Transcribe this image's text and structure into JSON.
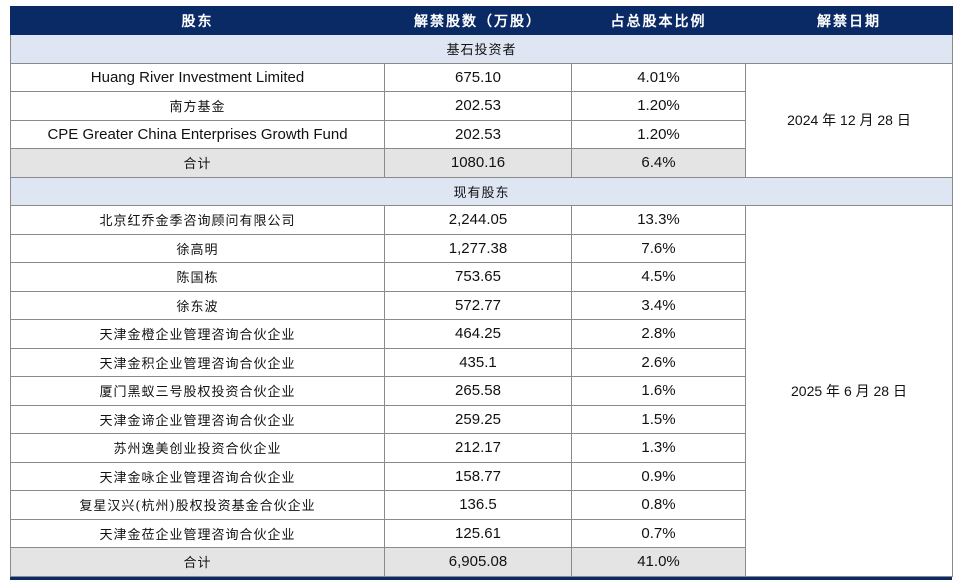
{
  "header": {
    "col1": "股东",
    "col2": "解禁股数（万股）",
    "col3": "占总股本比例",
    "col4": "解禁日期"
  },
  "sections": [
    {
      "title": "基石投资者",
      "date": "2024 年 12 月 28 日",
      "rows": [
        {
          "name": "Huang River Investment Limited",
          "shares": "675.10",
          "ratio": "4.01%"
        },
        {
          "name": "南方基金",
          "shares": "202.53",
          "ratio": "1.20%"
        },
        {
          "name": "CPE Greater China Enterprises Growth Fund",
          "shares": "202.53",
          "ratio": "1.20%"
        }
      ],
      "total": {
        "name": "合计",
        "shares": "1080.16",
        "ratio": "6.4%"
      }
    },
    {
      "title": "现有股东",
      "date": "2025 年 6 月 28 日",
      "rows": [
        {
          "name": "北京红乔金季咨询顾问有限公司",
          "shares": "2,244.05",
          "ratio": "13.3%"
        },
        {
          "name": "徐高明",
          "shares": "1,277.38",
          "ratio": "7.6%"
        },
        {
          "name": "陈国栋",
          "shares": "753.65",
          "ratio": "4.5%"
        },
        {
          "name": "徐东波",
          "shares": "572.77",
          "ratio": "3.4%"
        },
        {
          "name": "天津金橙企业管理咨询合伙企业",
          "shares": "464.25",
          "ratio": "2.8%"
        },
        {
          "name": "天津金积企业管理咨询合伙企业",
          "shares": "435.1",
          "ratio": "2.6%"
        },
        {
          "name": "厦门黑蚁三号股权投资合伙企业",
          "shares": "265.58",
          "ratio": "1.6%"
        },
        {
          "name": "天津金谛企业管理咨询合伙企业",
          "shares": "259.25",
          "ratio": "1.5%"
        },
        {
          "name": "苏州逸美创业投资合伙企业",
          "shares": "212.17",
          "ratio": "1.3%"
        },
        {
          "name": "天津金咏企业管理咨询合伙企业",
          "shares": "158.77",
          "ratio": "0.9%"
        },
        {
          "name": "复星汉兴(杭州)股权投资基金合伙企业",
          "shares": "136.5",
          "ratio": "0.8%"
        },
        {
          "name": "天津金莅企业管理咨询合伙企业",
          "shares": "125.61",
          "ratio": "0.7%"
        }
      ],
      "total": {
        "name": "合计",
        "shares": "6,905.08",
        "ratio": "41.0%"
      }
    }
  ],
  "colors": {
    "header_bg": "#0a2a66",
    "section_bg": "#dfe6f3",
    "total_bg": "#e4e4e4"
  }
}
